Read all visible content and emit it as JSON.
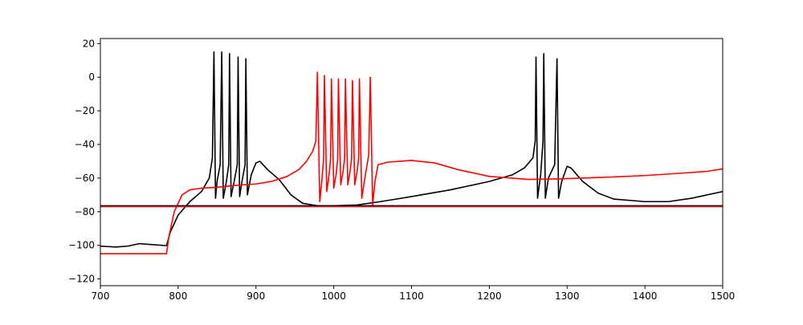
{
  "chart_data": {
    "type": "line",
    "title": "",
    "xlabel": "",
    "ylabel": "",
    "xlim": [
      700,
      1500
    ],
    "ylim": [
      -124,
      23
    ],
    "xticks": [
      700,
      800,
      900,
      1000,
      1100,
      1200,
      1300,
      1400,
      1500
    ],
    "yticks": [
      -120,
      -100,
      -80,
      -60,
      -40,
      -20,
      0,
      20
    ],
    "xtick_labels": [
      "700",
      "800",
      "900",
      "1000",
      "1100",
      "1200",
      "1300",
      "1400",
      "1500"
    ],
    "ytick_labels": [
      "−120",
      "−100",
      "−80",
      "−60",
      "−40",
      "−20",
      "0",
      "20"
    ],
    "grid": false,
    "colors": {
      "black_trace": "#000000",
      "red_trace": "#ff0000",
      "reference_black": "#000000",
      "reference_red": "#d62728"
    },
    "reference_lines": [
      {
        "y": -76.5,
        "color": "#000000"
      },
      {
        "y": -77.0,
        "color": "#d62728"
      }
    ],
    "series": [
      {
        "color": "#000000",
        "points": [
          [
            700,
            -100.5
          ],
          [
            720,
            -101
          ],
          [
            735,
            -100.5
          ],
          [
            750,
            -99
          ],
          [
            765,
            -99.5
          ],
          [
            785,
            -100.2
          ],
          [
            790,
            -92
          ],
          [
            800,
            -82
          ],
          [
            815,
            -74
          ],
          [
            830,
            -68
          ],
          [
            840,
            -60
          ],
          [
            844,
            -48
          ],
          [
            846,
            15
          ],
          [
            848,
            -72
          ],
          [
            850,
            -62
          ],
          [
            854,
            -52
          ],
          [
            856,
            15
          ],
          [
            858,
            -72
          ],
          [
            862,
            -62
          ],
          [
            865,
            -52
          ],
          [
            866,
            14
          ],
          [
            868,
            -71
          ],
          [
            872,
            -62
          ],
          [
            876,
            -52
          ],
          [
            877,
            12
          ],
          [
            879,
            -71
          ],
          [
            882,
            -62
          ],
          [
            886,
            -52
          ],
          [
            887,
            11
          ],
          [
            889,
            -70
          ],
          [
            894,
            -58
          ],
          [
            900,
            -51
          ],
          [
            905,
            -50
          ],
          [
            915,
            -55
          ],
          [
            930,
            -61
          ],
          [
            945,
            -70
          ],
          [
            960,
            -75
          ],
          [
            980,
            -76.5
          ],
          [
            1000,
            -76.5
          ],
          [
            1030,
            -76
          ],
          [
            1060,
            -74
          ],
          [
            1100,
            -71
          ],
          [
            1150,
            -67
          ],
          [
            1200,
            -62
          ],
          [
            1230,
            -58
          ],
          [
            1245,
            -54
          ],
          [
            1256,
            -48
          ],
          [
            1259,
            -38
          ],
          [
            1260,
            12
          ],
          [
            1262,
            -72
          ],
          [
            1266,
            -58
          ],
          [
            1269,
            -38
          ],
          [
            1270,
            14
          ],
          [
            1272,
            -72
          ],
          [
            1276,
            -60
          ],
          [
            1284,
            -52
          ],
          [
            1287,
            11
          ],
          [
            1289,
            -72
          ],
          [
            1293,
            -62
          ],
          [
            1300,
            -53
          ],
          [
            1305,
            -54
          ],
          [
            1320,
            -62
          ],
          [
            1340,
            -69
          ],
          [
            1360,
            -72.5
          ],
          [
            1400,
            -74
          ],
          [
            1430,
            -74
          ],
          [
            1460,
            -72
          ],
          [
            1500,
            -68
          ]
        ]
      },
      {
        "color": "#ff0000",
        "points": [
          [
            700,
            -105
          ],
          [
            785,
            -105
          ],
          [
            788,
            -95
          ],
          [
            795,
            -80
          ],
          [
            805,
            -70
          ],
          [
            815,
            -67
          ],
          [
            830,
            -66
          ],
          [
            850,
            -65.5
          ],
          [
            870,
            -64.5
          ],
          [
            900,
            -63.5
          ],
          [
            920,
            -62
          ],
          [
            940,
            -59
          ],
          [
            955,
            -55
          ],
          [
            965,
            -50
          ],
          [
            973,
            -44
          ],
          [
            977,
            -38
          ],
          [
            979,
            3
          ],
          [
            982,
            -74
          ],
          [
            985,
            -60
          ],
          [
            987,
            -48
          ],
          [
            988,
            1
          ],
          [
            991,
            -68
          ],
          [
            994,
            -58
          ],
          [
            996,
            -48
          ],
          [
            997,
            -1
          ],
          [
            1000,
            -66
          ],
          [
            1003,
            -58
          ],
          [
            1005,
            -49
          ],
          [
            1006,
            -1
          ],
          [
            1009,
            -64
          ],
          [
            1012,
            -56
          ],
          [
            1014,
            -48
          ],
          [
            1015,
            -1
          ],
          [
            1018,
            -64
          ],
          [
            1021,
            -56
          ],
          [
            1023,
            -48
          ],
          [
            1024,
            -2
          ],
          [
            1027,
            -64
          ],
          [
            1030,
            -56
          ],
          [
            1032,
            -48
          ],
          [
            1033,
            -1
          ],
          [
            1036,
            -72
          ],
          [
            1040,
            -60
          ],
          [
            1045,
            -46
          ],
          [
            1047,
            0
          ],
          [
            1050,
            -76
          ],
          [
            1053,
            -62
          ],
          [
            1057,
            -52
          ],
          [
            1070,
            -50.5
          ],
          [
            1100,
            -49.5
          ],
          [
            1130,
            -51
          ],
          [
            1160,
            -55
          ],
          [
            1200,
            -59
          ],
          [
            1250,
            -60.8
          ],
          [
            1290,
            -60.5
          ],
          [
            1350,
            -59.5
          ],
          [
            1400,
            -58.5
          ],
          [
            1450,
            -57
          ],
          [
            1480,
            -56
          ],
          [
            1500,
            -54.5
          ]
        ]
      }
    ]
  }
}
